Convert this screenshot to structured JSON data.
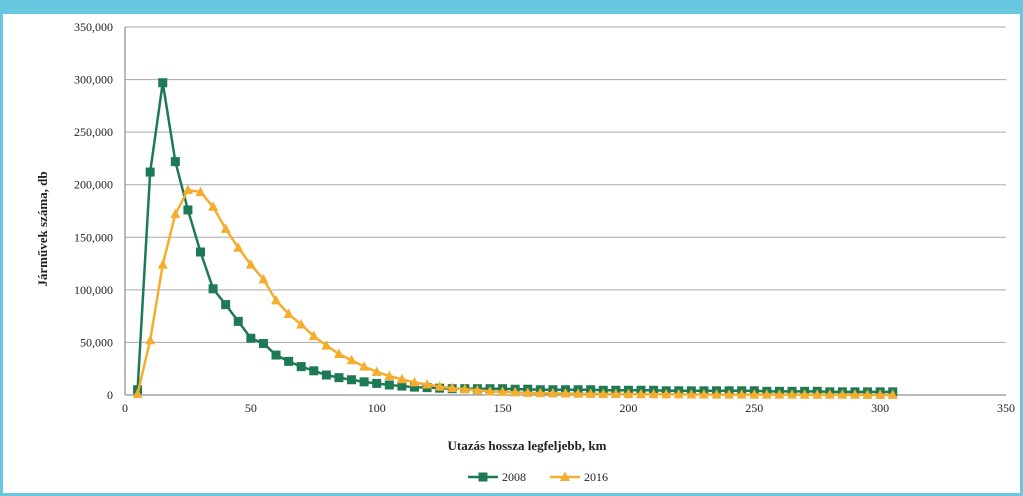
{
  "chart_data": {
    "type": "line",
    "xlabel": "Utazás hossza legfeljebb, km",
    "ylabel": "Járművek száma, db",
    "xlim": [
      0,
      350
    ],
    "ylim": [
      0,
      350000
    ],
    "x_ticks": [
      0,
      50,
      100,
      150,
      200,
      250,
      300,
      350
    ],
    "y_ticks": [
      0,
      50000,
      100000,
      150000,
      200000,
      250000,
      300000,
      350000
    ],
    "x_tick_labels": [
      "0",
      "50",
      "100",
      "150",
      "200",
      "250",
      "300",
      "350"
    ],
    "y_tick_labels": [
      "0",
      "50,000",
      "100,000",
      "150,000",
      "200,000",
      "250,000",
      "300,000",
      "350,000"
    ],
    "grid": "horizontal",
    "legend": "bottom",
    "series": [
      {
        "name": "2008",
        "color": "#1e7a55",
        "marker": "square",
        "x": [
          5,
          10,
          15,
          20,
          25,
          30,
          35,
          40,
          45,
          50,
          55,
          60,
          65,
          70,
          75,
          80,
          85,
          90,
          95,
          100,
          105,
          110,
          115,
          120,
          125,
          130,
          135,
          140,
          145,
          150,
          155,
          160,
          165,
          170,
          175,
          180,
          185,
          190,
          195,
          200,
          205,
          210,
          215,
          220,
          225,
          230,
          235,
          240,
          245,
          250,
          255,
          260,
          265,
          270,
          275,
          280,
          285,
          290,
          295,
          300,
          305
        ],
        "values": [
          5000,
          212000,
          297000,
          222000,
          176000,
          136000,
          101000,
          86000,
          70000,
          54000,
          49000,
          38000,
          32000,
          27000,
          23000,
          19000,
          16500,
          14500,
          12500,
          11000,
          9500,
          8500,
          7500,
          7000,
          6500,
          6000,
          6000,
          6000,
          6000,
          6000,
          5500,
          5500,
          5000,
          5000,
          5000,
          5000,
          5000,
          4500,
          4500,
          4500,
          4500,
          4500,
          4000,
          4000,
          4000,
          4000,
          4000,
          4000,
          4000,
          4000,
          3500,
          3500,
          3500,
          3500,
          3500,
          3000,
          3000,
          3000,
          3000,
          3000,
          3000
        ]
      },
      {
        "name": "2016",
        "color": "#f5ad2e",
        "marker": "triangle",
        "x": [
          5,
          10,
          15,
          20,
          25,
          30,
          35,
          40,
          45,
          50,
          55,
          60,
          65,
          70,
          75,
          80,
          85,
          90,
          95,
          100,
          105,
          110,
          115,
          120,
          125,
          130,
          135,
          140,
          145,
          150,
          155,
          160,
          165,
          170,
          175,
          180,
          185,
          190,
          195,
          200,
          205,
          210,
          215,
          220,
          225,
          230,
          235,
          240,
          245,
          250,
          255,
          260,
          265,
          270,
          275,
          280,
          285,
          290,
          295,
          300,
          305
        ],
        "values": [
          1000,
          52000,
          124000,
          172000,
          195000,
          193000,
          179000,
          158000,
          140000,
          124000,
          110000,
          90000,
          77000,
          67000,
          56000,
          47000,
          39000,
          33000,
          27000,
          22000,
          18000,
          15000,
          12000,
          10000,
          8000,
          6500,
          5500,
          4500,
          3500,
          3000,
          2500,
          2000,
          1800,
          1600,
          1400,
          1200,
          1100,
          1000,
          900,
          800,
          700,
          700,
          600,
          600,
          500,
          500,
          400,
          400,
          400,
          300,
          300,
          300,
          300,
          200,
          200,
          200,
          200,
          200,
          100,
          100,
          100
        ]
      }
    ]
  }
}
